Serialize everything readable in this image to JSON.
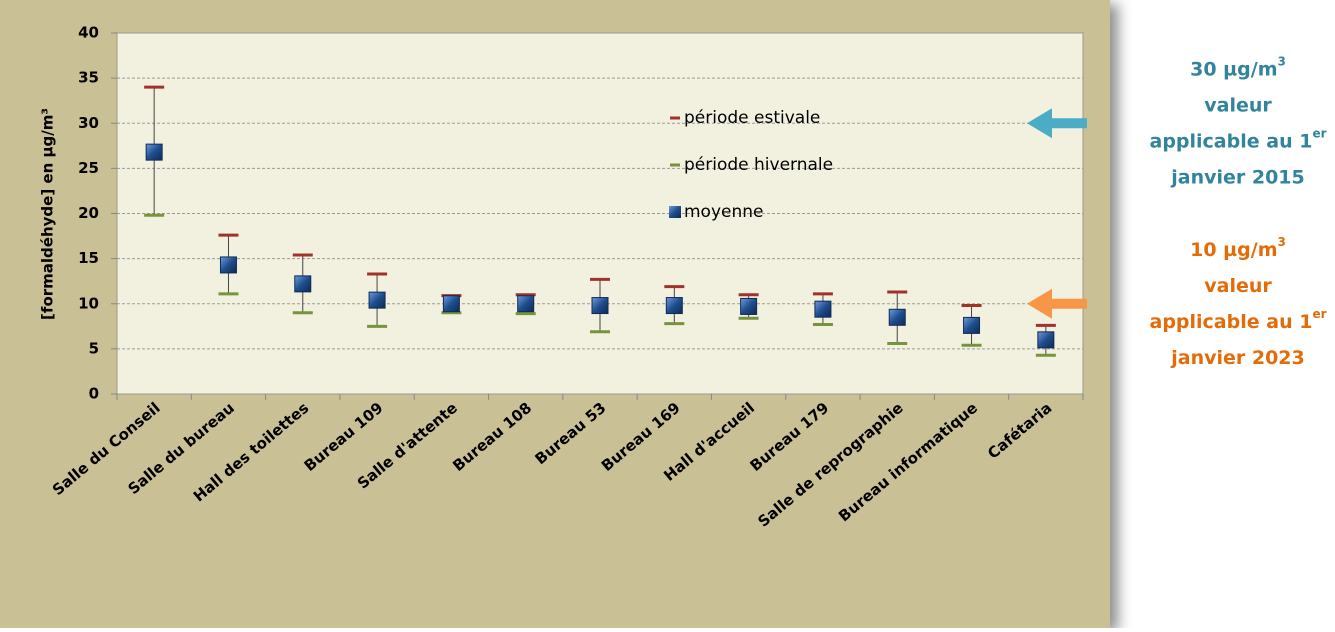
{
  "chart_data": {
    "type": "errorbar",
    "y_label": "[formaldéhyde] en µg/m³",
    "categories": [
      "Salle du Conseil",
      "Salle du bureau",
      "Hall des toilettes",
      "Bureau 109",
      "Salle d'attente",
      "Bureau 108",
      "Bureau 53",
      "Bureau 169",
      "Hall d'accueil",
      "Bureau 179",
      "Salle de reprographie",
      "Bureau informatique",
      "Cafétaria"
    ],
    "series": [
      {
        "name": "période estivale",
        "color": "#a0322c",
        "values": [
          34,
          17.6,
          15.4,
          13.3,
          10.9,
          11.0,
          12.7,
          11.9,
          11.0,
          11.1,
          11.3,
          9.8,
          7.6
        ]
      },
      {
        "name": "période hivernale",
        "color": "#77933c",
        "values": [
          19.8,
          11.1,
          9.0,
          7.5,
          9.0,
          8.9,
          6.9,
          7.8,
          8.4,
          7.7,
          5.6,
          5.4,
          4.3
        ]
      },
      {
        "name": "moyenne",
        "color": "#1f4e8c",
        "values": [
          26.8,
          14.3,
          12.2,
          10.4,
          10.0,
          10.0,
          9.8,
          9.8,
          9.7,
          9.4,
          8.5,
          7.6,
          6.0
        ]
      }
    ],
    "ylim": [
      0,
      40
    ],
    "yticks": [
      0,
      5,
      10,
      15,
      20,
      25,
      30,
      35,
      40
    ],
    "grid": true,
    "annotations": [
      {
        "value": 30,
        "color": "#31849b",
        "arrow_color": "#4bacc6",
        "lines": [
          {
            "text": "30 µg/m",
            "sup": "3"
          },
          {
            "text": "valeur"
          },
          {
            "text": "applicable au 1",
            "sup": "er"
          },
          {
            "text": "janvier 2015"
          }
        ]
      },
      {
        "value": 10,
        "color": "#e36c09",
        "arrow_color": "#f79646",
        "lines": [
          {
            "text": "10 µg/m",
            "sup": "3"
          },
          {
            "text": "valeur"
          },
          {
            "text": "applicable au 1",
            "sup": "er"
          },
          {
            "text": "janvier 2023"
          }
        ]
      }
    ]
  }
}
